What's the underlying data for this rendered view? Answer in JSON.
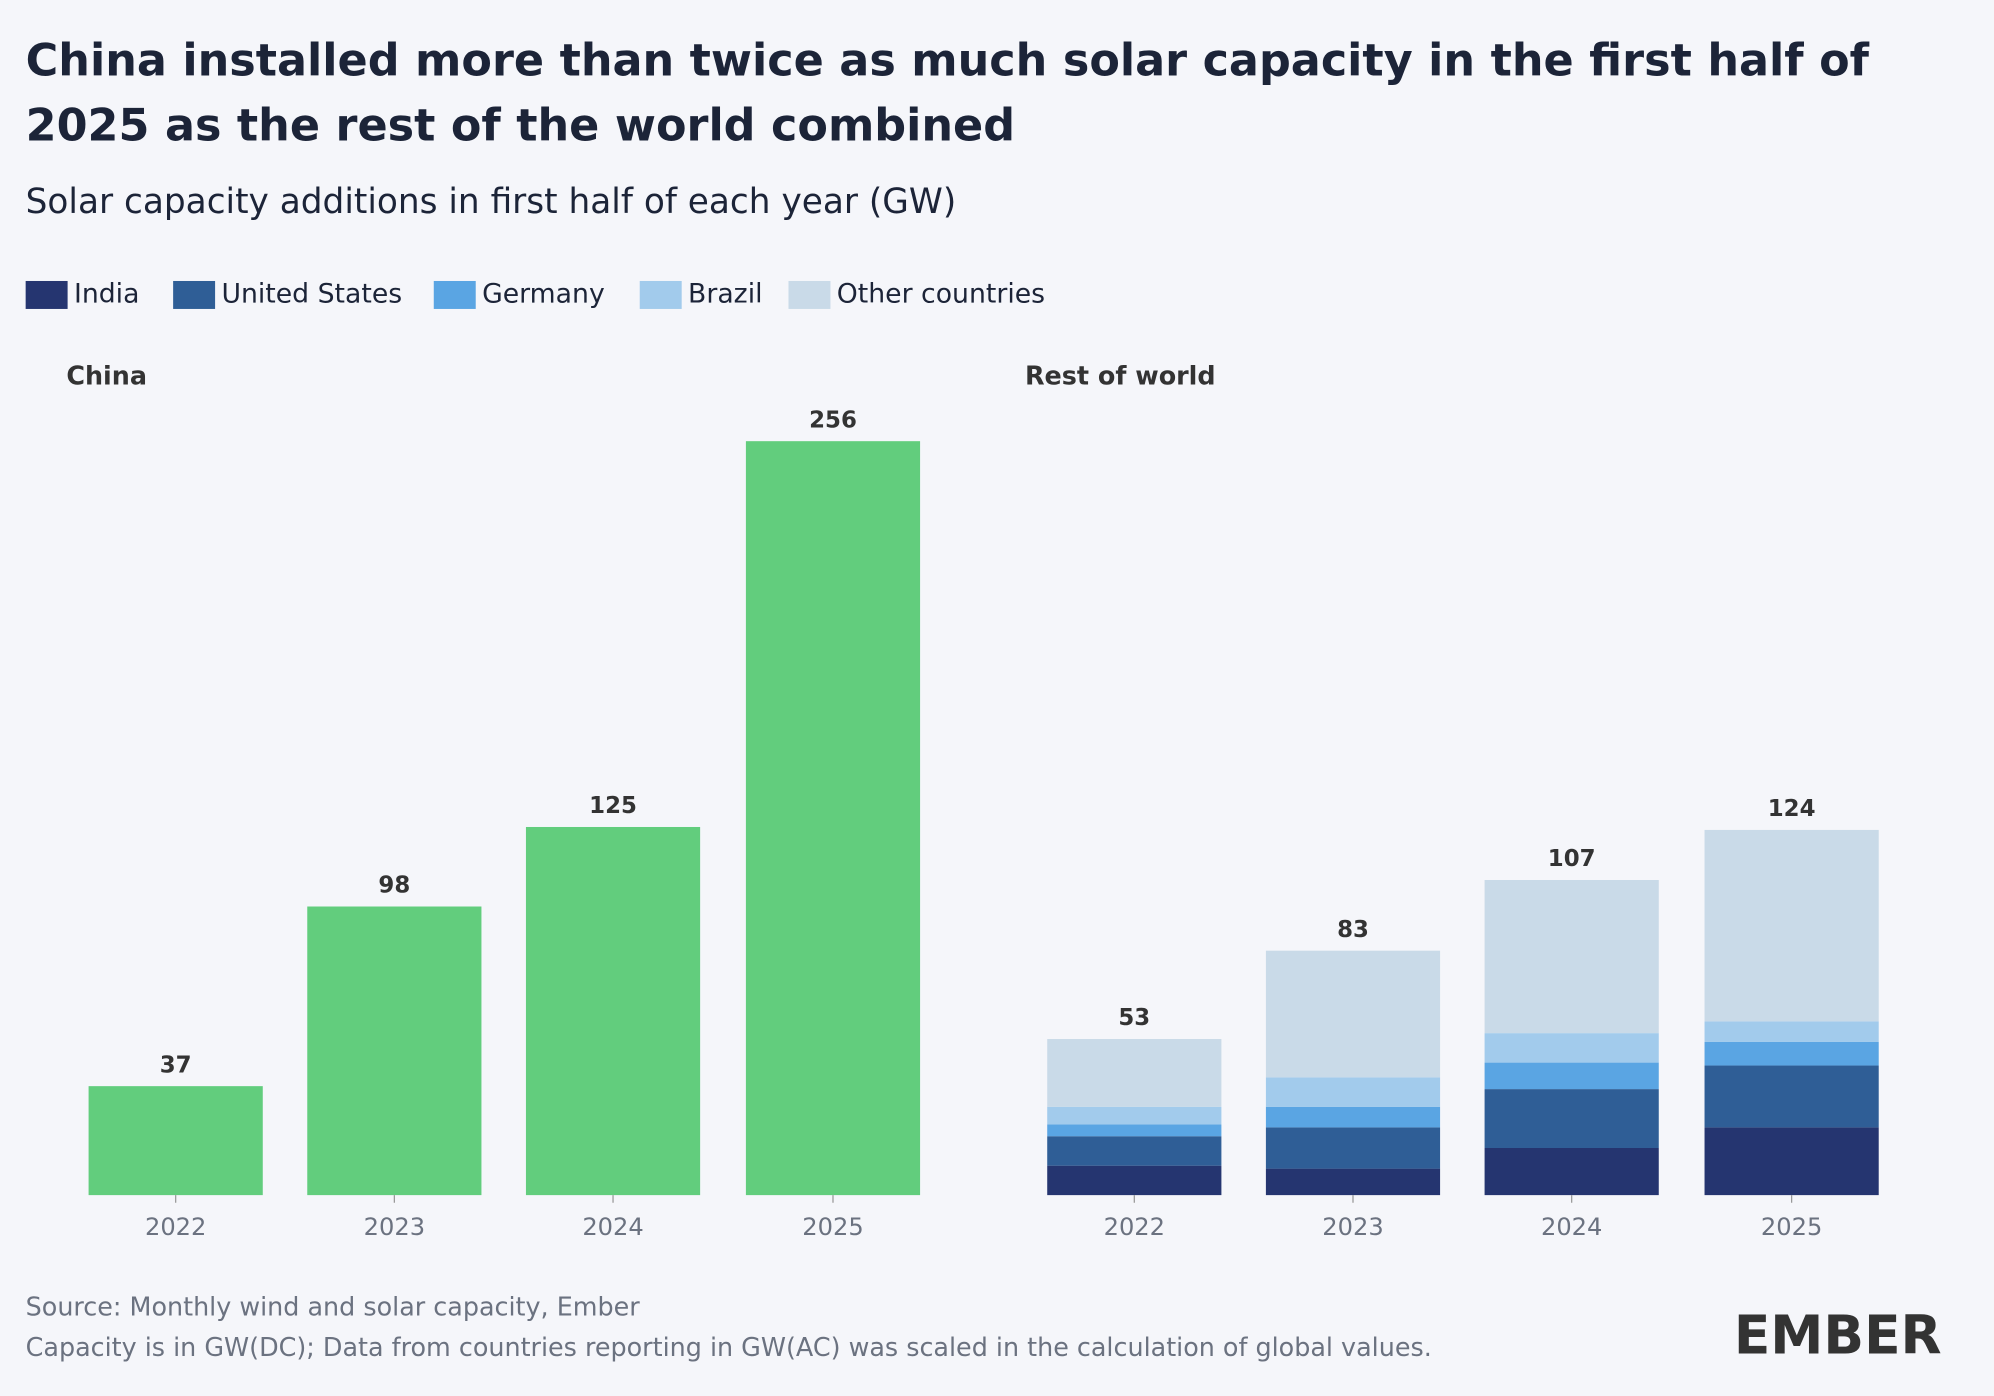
{
  "title": "China installed more than twice as much solar capacity in the first half of 2025 as the rest of the world combined",
  "subtitle": "Solar capacity additions in first half of each year (GW)",
  "source": "Source: Monthly wind and solar capacity, Ember",
  "note": "Capacity is in GW(DC); Data from countries reporting in GW(AC) was scaled in the calculation of global values.",
  "logo": "EMBER",
  "chart_data": [
    {
      "type": "bar",
      "title": "China",
      "categories": [
        "2022",
        "2023",
        "2024",
        "2025"
      ],
      "values": [
        37,
        98,
        125,
        256
      ],
      "color": "#62cd7d",
      "ylim": [
        0,
        256
      ]
    },
    {
      "type": "stacked_bar",
      "title": "Rest of world",
      "categories": [
        "2022",
        "2023",
        "2024",
        "2025"
      ],
      "ylim": [
        0,
        256
      ],
      "series": [
        {
          "name": "India",
          "color": "#253570",
          "values": [
            10,
            9,
            16,
            23
          ]
        },
        {
          "name": "United States",
          "color": "#2f5e96",
          "values": [
            10,
            14,
            20,
            21
          ]
        },
        {
          "name": "Germany",
          "color": "#5aa5e3",
          "values": [
            4,
            7,
            9,
            8
          ]
        },
        {
          "name": "Brazil",
          "color": "#a2cbec",
          "values": [
            6,
            10,
            10,
            7
          ]
        },
        {
          "name": "Other countries",
          "color": "#c9dae8",
          "values": [
            23,
            43,
            52,
            65
          ]
        }
      ],
      "totals": [
        53,
        83,
        107,
        124
      ]
    }
  ]
}
